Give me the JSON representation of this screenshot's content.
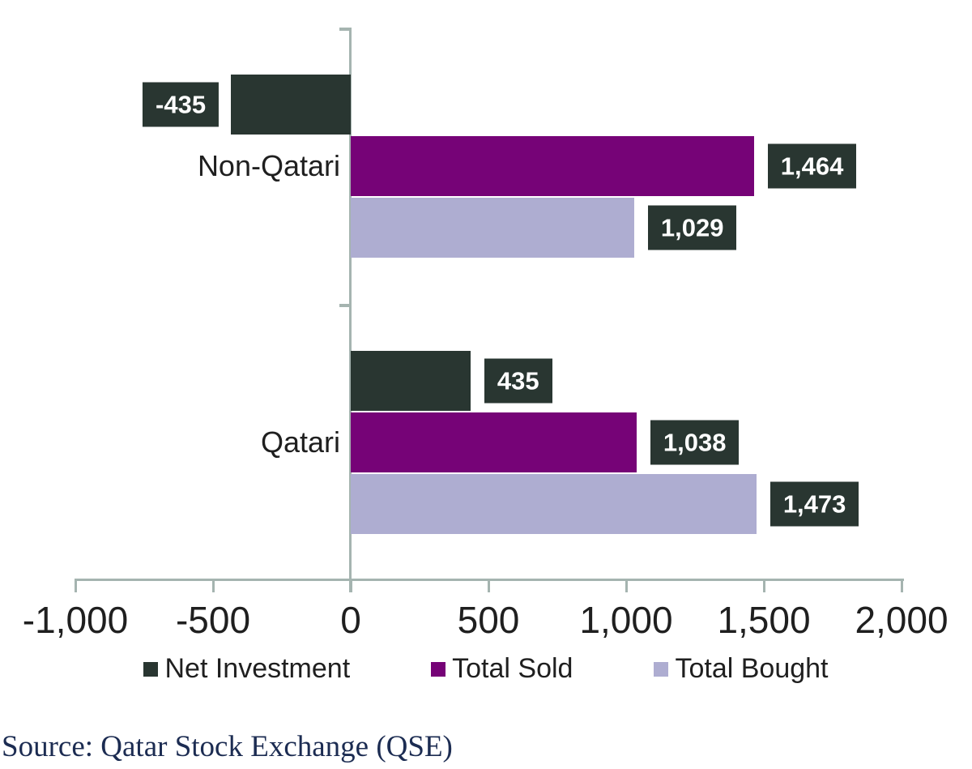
{
  "chart_data": {
    "type": "bar",
    "orientation": "horizontal",
    "title": "",
    "xlabel": "",
    "ylabel": "",
    "categories": [
      "Non-Qatari",
      "Qatari"
    ],
    "series": [
      {
        "name": "Net Investment",
        "color": "#293631",
        "values": [
          -435,
          435
        ]
      },
      {
        "name": "Total Sold",
        "color": "#760377",
        "values": [
          1464,
          1038
        ]
      },
      {
        "name": "Total Bought",
        "color": "#aeadd1",
        "values": [
          1029,
          1473
        ]
      }
    ],
    "data_label_texts": [
      [
        "-435",
        "435"
      ],
      [
        "1,464",
        "1,038"
      ],
      [
        "1,029",
        "1,473"
      ]
    ],
    "xlim": [
      -1000,
      2000
    ],
    "xticks": [
      -1000,
      -500,
      0,
      500,
      1000,
      1500,
      2000
    ],
    "xtick_labels": [
      "-1,000",
      "-500",
      "0",
      "500",
      "1,000",
      "1,500",
      "2,000"
    ],
    "grid": false,
    "legend_position": "bottom",
    "legend_labels": [
      "Net Investment",
      "Total Sold",
      "Total Bought"
    ],
    "data_labels": {
      "background": "#293631",
      "text_color": "#ffffff"
    },
    "axis_color": "#a5b4b0",
    "text_color": "#1f1f1f",
    "background_color": "#ffffff"
  },
  "source": {
    "text": "Source: Qatar Stock Exchange (QSE)",
    "color": "#1c2c52"
  }
}
